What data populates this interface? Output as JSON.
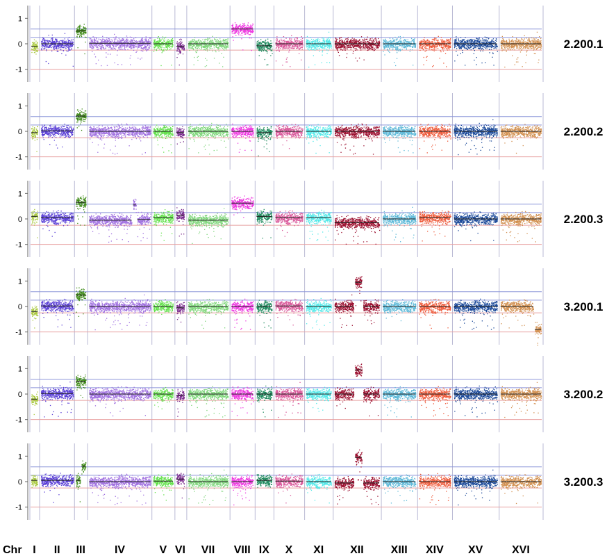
{
  "chart_data": {
    "type": "scatter",
    "description_axis": "log2 copy-number ratio along the yeast genome, one panel per sample",
    "y_ticks": [
      "1",
      "0",
      "-1"
    ],
    "ylim": [
      -1.5,
      1.5
    ],
    "reference_lines": [
      {
        "y": 0.58,
        "color": "#8c95d9"
      },
      {
        "y": 0.25,
        "color": "#8c95d9"
      },
      {
        "y": -0.25,
        "color": "#e8a0a0"
      },
      {
        "y": -1.0,
        "color": "#e8a0a0"
      }
    ],
    "x_axis_prefix": "Chr",
    "chromosomes": [
      {
        "label": "I",
        "start": 0,
        "end": 11,
        "color": "#a8c83c"
      },
      {
        "label": "II",
        "start": 14,
        "end": 62,
        "color": "#5a3fd6"
      },
      {
        "label": "III",
        "start": 64,
        "end": 80,
        "color": "#3e8a16"
      },
      {
        "label": "IV",
        "start": 83,
        "end": 173,
        "color": "#a070e0"
      },
      {
        "label": "V",
        "start": 175,
        "end": 205,
        "color": "#62e04a"
      },
      {
        "label": "VI",
        "start": 208,
        "end": 221,
        "color": "#7a2a8e"
      },
      {
        "label": "VII",
        "start": 225,
        "end": 284,
        "color": "#7ed67a"
      },
      {
        "label": "VIII",
        "start": 287,
        "end": 320,
        "color": "#ee38e0"
      },
      {
        "label": "IX",
        "start": 323,
        "end": 347,
        "color": "#1f8a5e"
      },
      {
        "label": "X",
        "start": 350,
        "end": 391,
        "color": "#d9589a"
      },
      {
        "label": "XI",
        "start": 394,
        "end": 432,
        "color": "#52e8e8"
      },
      {
        "label": "XII",
        "start": 435,
        "end": 501,
        "color": "#9c1030"
      },
      {
        "label": "XIII",
        "start": 504,
        "end": 553,
        "color": "#5cb8d8"
      },
      {
        "label": "XIV",
        "start": 556,
        "end": 603,
        "color": "#ee5a3a"
      },
      {
        "label": "XV",
        "start": 606,
        "end": 670,
        "color": "#1c4a9a"
      },
      {
        "label": "XVI",
        "start": 673,
        "end": 733,
        "color": "#d29050"
      }
    ],
    "panels": [
      {
        "name": "2.200.1",
        "segments": [
          {
            "chr": "I",
            "from": 0,
            "to": 11,
            "value": -0.1
          },
          {
            "chr": "II",
            "from": 14,
            "to": 62,
            "value": 0
          },
          {
            "chr": "III",
            "from": 64,
            "to": 80,
            "value": 0.5
          },
          {
            "chr": "IV",
            "from": 83,
            "to": 173,
            "value": 0.02
          },
          {
            "chr": "V",
            "from": 175,
            "to": 205,
            "value": 0
          },
          {
            "chr": "VI",
            "from": 208,
            "to": 221,
            "value": -0.1
          },
          {
            "chr": "VII",
            "from": 225,
            "to": 284,
            "value": 0
          },
          {
            "chr": "VIII",
            "from": 287,
            "to": 320,
            "value": 0.58
          },
          {
            "chr": "IX",
            "from": 323,
            "to": 347,
            "value": -0.08
          },
          {
            "chr": "X",
            "from": 350,
            "to": 391,
            "value": 0
          },
          {
            "chr": "XI",
            "from": 394,
            "to": 432,
            "value": 0
          },
          {
            "chr": "XII",
            "from": 435,
            "to": 501,
            "value": 0
          },
          {
            "chr": "XIII",
            "from": 504,
            "to": 553,
            "value": 0
          },
          {
            "chr": "XIV",
            "from": 556,
            "to": 603,
            "value": 0
          },
          {
            "chr": "XV",
            "from": 606,
            "to": 670,
            "value": 0
          },
          {
            "chr": "XVI",
            "from": 673,
            "to": 733,
            "value": 0
          }
        ]
      },
      {
        "name": "2.200.2",
        "segments": [
          {
            "chr": "I",
            "from": 0,
            "to": 11,
            "value": -0.05
          },
          {
            "chr": "II",
            "from": 14,
            "to": 62,
            "value": 0.02
          },
          {
            "chr": "III",
            "from": 64,
            "to": 80,
            "value": 0.6
          },
          {
            "chr": "IV",
            "from": 83,
            "to": 173,
            "value": 0
          },
          {
            "chr": "V",
            "from": 175,
            "to": 205,
            "value": 0
          },
          {
            "chr": "VI",
            "from": 208,
            "to": 221,
            "value": -0.05
          },
          {
            "chr": "VII",
            "from": 225,
            "to": 284,
            "value": 0
          },
          {
            "chr": "VIII",
            "from": 287,
            "to": 320,
            "value": 0
          },
          {
            "chr": "IX",
            "from": 323,
            "to": 347,
            "value": -0.05
          },
          {
            "chr": "X",
            "from": 350,
            "to": 391,
            "value": 0
          },
          {
            "chr": "XI",
            "from": 394,
            "to": 432,
            "value": 0
          },
          {
            "chr": "XII",
            "from": 435,
            "to": 501,
            "value": 0
          },
          {
            "chr": "XIII",
            "from": 504,
            "to": 553,
            "value": 0
          },
          {
            "chr": "XIV",
            "from": 556,
            "to": 603,
            "value": 0
          },
          {
            "chr": "XV",
            "from": 606,
            "to": 670,
            "value": 0
          },
          {
            "chr": "XVI",
            "from": 673,
            "to": 733,
            "value": 0
          }
        ]
      },
      {
        "name": "2.200.3",
        "segments": [
          {
            "chr": "I",
            "from": 0,
            "to": 11,
            "value": 0.1
          },
          {
            "chr": "II",
            "from": 14,
            "to": 62,
            "value": 0.05
          },
          {
            "chr": "III",
            "from": 64,
            "to": 80,
            "value": 0.65
          },
          {
            "chr": "IV",
            "from": 83,
            "to": 146,
            "value": -0.05
          },
          {
            "chr": "IV",
            "from": 146,
            "to": 152,
            "value": 0.55
          },
          {
            "chr": "IV",
            "from": 152,
            "to": 173,
            "value": -0.02
          },
          {
            "chr": "V",
            "from": 175,
            "to": 205,
            "value": 0.05
          },
          {
            "chr": "VI",
            "from": 208,
            "to": 221,
            "value": 0.15
          },
          {
            "chr": "VII",
            "from": 225,
            "to": 284,
            "value": -0.05
          },
          {
            "chr": "VIII",
            "from": 287,
            "to": 320,
            "value": 0.62
          },
          {
            "chr": "IX",
            "from": 323,
            "to": 347,
            "value": 0.1
          },
          {
            "chr": "X",
            "from": 350,
            "to": 391,
            "value": 0.05
          },
          {
            "chr": "XI",
            "from": 394,
            "to": 432,
            "value": 0.05
          },
          {
            "chr": "XII",
            "from": 435,
            "to": 501,
            "value": -0.15
          },
          {
            "chr": "XIII",
            "from": 504,
            "to": 553,
            "value": 0
          },
          {
            "chr": "XIV",
            "from": 556,
            "to": 603,
            "value": 0.05
          },
          {
            "chr": "XV",
            "from": 606,
            "to": 670,
            "value": 0
          },
          {
            "chr": "XVI",
            "from": 673,
            "to": 733,
            "value": 0
          }
        ]
      },
      {
        "name": "3.200.1",
        "segments": [
          {
            "chr": "I",
            "from": 0,
            "to": 11,
            "value": -0.2
          },
          {
            "chr": "II",
            "from": 14,
            "to": 62,
            "value": 0.02
          },
          {
            "chr": "III",
            "from": 64,
            "to": 80,
            "value": 0.45
          },
          {
            "chr": "IV",
            "from": 83,
            "to": 173,
            "value": 0
          },
          {
            "chr": "V",
            "from": 175,
            "to": 205,
            "value": 0
          },
          {
            "chr": "VI",
            "from": 208,
            "to": 221,
            "value": -0.05
          },
          {
            "chr": "VII",
            "from": 225,
            "to": 284,
            "value": 0
          },
          {
            "chr": "VIII",
            "from": 287,
            "to": 320,
            "value": 0
          },
          {
            "chr": "IX",
            "from": 323,
            "to": 347,
            "value": 0
          },
          {
            "chr": "X",
            "from": 350,
            "to": 391,
            "value": 0.02
          },
          {
            "chr": "XI",
            "from": 394,
            "to": 432,
            "value": 0
          },
          {
            "chr": "XII",
            "from": 435,
            "to": 464,
            "value": 0
          },
          {
            "chr": "XII",
            "from": 464,
            "to": 476,
            "value": 0.95
          },
          {
            "chr": "XII",
            "from": 476,
            "to": 501,
            "value": 0
          },
          {
            "chr": "XIII",
            "from": 504,
            "to": 553,
            "value": 0
          },
          {
            "chr": "XIV",
            "from": 556,
            "to": 603,
            "value": 0
          },
          {
            "chr": "XV",
            "from": 606,
            "to": 670,
            "value": 0
          },
          {
            "chr": "XVI",
            "from": 673,
            "to": 722,
            "value": 0
          },
          {
            "chr": "XVI",
            "from": 722,
            "to": 733,
            "value": -0.9
          }
        ]
      },
      {
        "name": "3.200.2",
        "segments": [
          {
            "chr": "I",
            "from": 0,
            "to": 11,
            "value": -0.2
          },
          {
            "chr": "II",
            "from": 14,
            "to": 62,
            "value": 0.02
          },
          {
            "chr": "III",
            "from": 64,
            "to": 80,
            "value": 0.5
          },
          {
            "chr": "IV",
            "from": 83,
            "to": 173,
            "value": 0
          },
          {
            "chr": "V",
            "from": 175,
            "to": 205,
            "value": 0
          },
          {
            "chr": "VI",
            "from": 208,
            "to": 221,
            "value": -0.05
          },
          {
            "chr": "VII",
            "from": 225,
            "to": 284,
            "value": 0
          },
          {
            "chr": "VIII",
            "from": 287,
            "to": 320,
            "value": 0
          },
          {
            "chr": "IX",
            "from": 323,
            "to": 347,
            "value": 0
          },
          {
            "chr": "X",
            "from": 350,
            "to": 391,
            "value": 0
          },
          {
            "chr": "XI",
            "from": 394,
            "to": 432,
            "value": 0
          },
          {
            "chr": "XII",
            "from": 435,
            "to": 464,
            "value": 0
          },
          {
            "chr": "XII",
            "from": 464,
            "to": 476,
            "value": 0.95
          },
          {
            "chr": "XII",
            "from": 476,
            "to": 501,
            "value": 0
          },
          {
            "chr": "XIII",
            "from": 504,
            "to": 553,
            "value": 0
          },
          {
            "chr": "XIV",
            "from": 556,
            "to": 603,
            "value": 0
          },
          {
            "chr": "XV",
            "from": 606,
            "to": 670,
            "value": 0
          },
          {
            "chr": "XVI",
            "from": 673,
            "to": 733,
            "value": 0
          }
        ]
      },
      {
        "name": "3.200.3",
        "segments": [
          {
            "chr": "I",
            "from": 0,
            "to": 11,
            "value": 0.05
          },
          {
            "chr": "II",
            "from": 14,
            "to": 62,
            "value": 0.05
          },
          {
            "chr": "III",
            "from": 64,
            "to": 72,
            "value": 0.05
          },
          {
            "chr": "III",
            "from": 72,
            "to": 80,
            "value": 0.6
          },
          {
            "chr": "IV",
            "from": 83,
            "to": 173,
            "value": 0
          },
          {
            "chr": "V",
            "from": 175,
            "to": 205,
            "value": 0.02
          },
          {
            "chr": "VI",
            "from": 208,
            "to": 221,
            "value": 0.1
          },
          {
            "chr": "VII",
            "from": 225,
            "to": 284,
            "value": 0
          },
          {
            "chr": "VIII",
            "from": 287,
            "to": 320,
            "value": 0
          },
          {
            "chr": "IX",
            "from": 323,
            "to": 347,
            "value": 0.05
          },
          {
            "chr": "X",
            "from": 350,
            "to": 391,
            "value": 0.02
          },
          {
            "chr": "XI",
            "from": 394,
            "to": 432,
            "value": 0
          },
          {
            "chr": "XII",
            "from": 435,
            "to": 464,
            "value": -0.05
          },
          {
            "chr": "XII",
            "from": 464,
            "to": 476,
            "value": 0.95
          },
          {
            "chr": "XII",
            "from": 476,
            "to": 501,
            "value": -0.05
          },
          {
            "chr": "XIII",
            "from": 504,
            "to": 553,
            "value": 0
          },
          {
            "chr": "XIV",
            "from": 556,
            "to": 603,
            "value": 0
          },
          {
            "chr": "XV",
            "from": 606,
            "to": 670,
            "value": 0
          },
          {
            "chr": "XVI",
            "from": 673,
            "to": 733,
            "value": 0
          }
        ]
      }
    ]
  }
}
